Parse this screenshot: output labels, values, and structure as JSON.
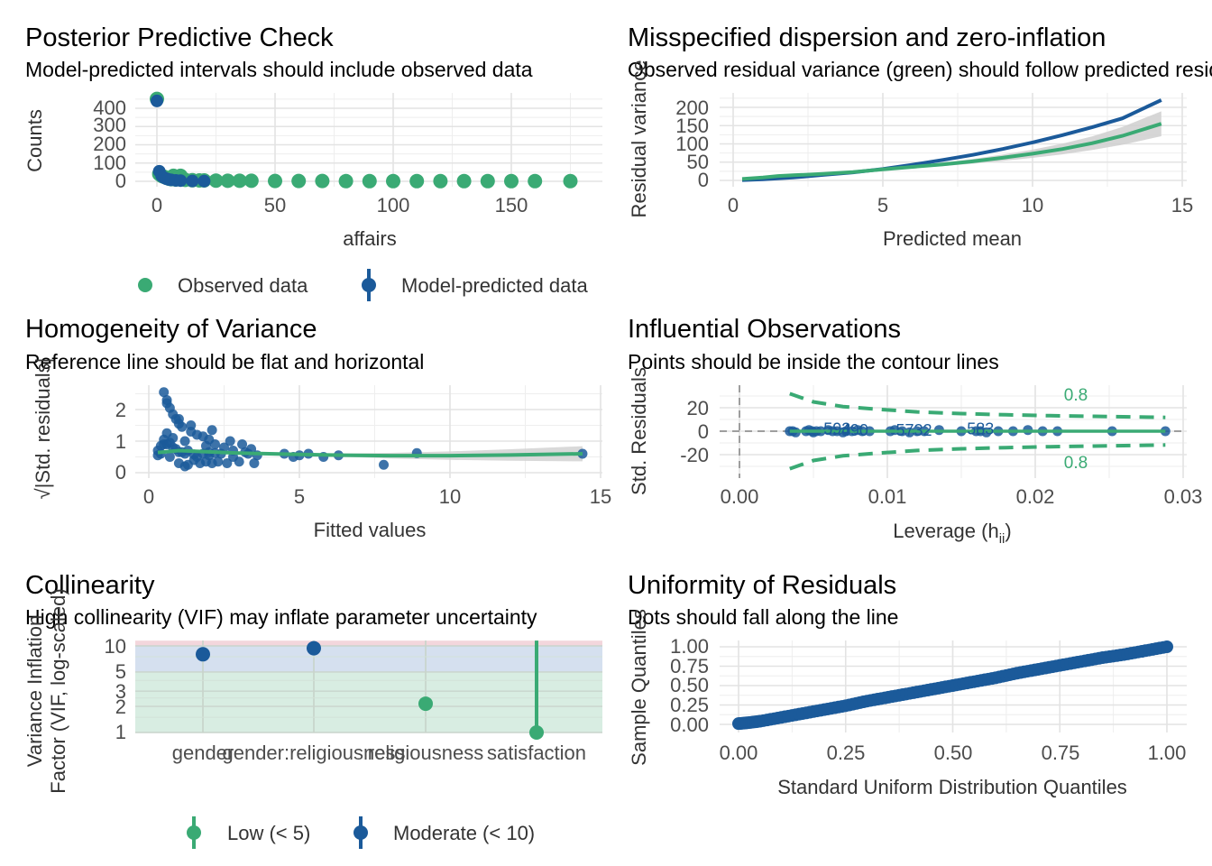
{
  "colors": {
    "green": "#3aaa74",
    "blue": "#1b5a9a",
    "grey_band": "#cfcfcf",
    "ref": "#9e9e9e"
  },
  "panels": {
    "ppc": {
      "title": "Posterior Predictive Check",
      "subtitle": "Model-predicted intervals should include observed data",
      "xlabel": "affairs",
      "ylabel": "Counts",
      "xticks": [
        "0",
        "50",
        "100",
        "150"
      ],
      "yticks": [
        "0",
        "100",
        "200",
        "300",
        "400"
      ],
      "legend": [
        "Observed data",
        "Model-predicted data"
      ]
    },
    "disp": {
      "title": "Misspecified dispersion and zero-inflation",
      "subtitle": "Observed residual variance (green) should follow predicted residual variance (blue)",
      "xlabel": "Predicted mean",
      "ylabel": "Residual variance",
      "xticks": [
        "0",
        "5",
        "10",
        "15"
      ],
      "yticks": [
        "0",
        "50",
        "100",
        "150",
        "200"
      ]
    },
    "homog": {
      "title": "Homogeneity of Variance",
      "subtitle": "Reference line should be flat and horizontal",
      "xlabel": "Fitted values",
      "ylabel": "√|Std. residuals|",
      "xticks": [
        "0",
        "5",
        "10",
        "15"
      ],
      "yticks": [
        "0",
        "1",
        "2"
      ]
    },
    "infl": {
      "title": "Influential Observations",
      "subtitle": "Points should be inside the contour lines",
      "xlabel": "Leverage (h",
      "xlabel_sub": "ii",
      "xlabel_end": ")",
      "ylabel": "Std. Residuals",
      "xticks": [
        "0.00",
        "0.01",
        "0.02",
        "0.03"
      ],
      "yticks": [
        "-20",
        "0",
        "20"
      ],
      "contour_label": "0.8",
      "point_labels": [
        "593",
        "490",
        "5732",
        "583"
      ]
    },
    "coll": {
      "title": "Collinearity",
      "subtitle": "High collinearity (VIF) may inflate parameter uncertainty",
      "ylabel_1": "Variance Inflation",
      "ylabel_2": "Factor (VIF, log-scaled)",
      "xticks": [
        "gender",
        "gender:religiousness",
        "religiousness",
        "satisfaction"
      ],
      "yticks": [
        "1",
        "2",
        "3",
        "5",
        "10"
      ],
      "legend": [
        "Low (< 5)",
        "Moderate (< 10)"
      ]
    },
    "unif": {
      "title": "Uniformity of Residuals",
      "subtitle": "Dots should fall along the line",
      "xlabel": "Standard Uniform Distribution Quantiles",
      "ylabel": "Sample Quantiles",
      "xticks": [
        "0.00",
        "0.25",
        "0.50",
        "0.75",
        "1.00"
      ],
      "yticks": [
        "0.00",
        "0.25",
        "0.50",
        "0.75",
        "1.00"
      ]
    }
  },
  "chart_data": [
    {
      "type": "scatter",
      "title": "Posterior Predictive Check",
      "xlabel": "affairs",
      "ylabel": "Counts",
      "xlim": [
        -3,
        183
      ],
      "ylim": [
        -10,
        470
      ],
      "series": [
        {
          "name": "Observed data",
          "x": [
            0,
            1,
            2,
            3,
            4,
            5,
            6,
            7,
            8,
            10,
            12,
            15,
            18,
            20,
            25,
            30,
            35,
            40,
            50,
            60,
            70,
            80,
            90,
            100,
            110,
            120,
            130,
            140,
            150,
            160,
            175
          ],
          "y": [
            451,
            40,
            30,
            25,
            20,
            15,
            12,
            30,
            10,
            30,
            8,
            6,
            5,
            5,
            4,
            3,
            3,
            3,
            2,
            2,
            2,
            1,
            1,
            1,
            1,
            1,
            1,
            1,
            1,
            1,
            1
          ]
        },
        {
          "name": "Model-predicted data",
          "x": [
            0,
            1,
            2,
            3,
            4,
            5,
            6,
            8,
            10,
            15,
            20
          ],
          "y": [
            440,
            55,
            30,
            20,
            14,
            10,
            8,
            5,
            4,
            2,
            1
          ]
        }
      ]
    },
    {
      "type": "line",
      "title": "Misspecified dispersion and zero-inflation",
      "xlabel": "Predicted mean",
      "ylabel": "Residual variance",
      "xlim": [
        -0.3,
        15
      ],
      "ylim": [
        -10,
        230
      ],
      "series": [
        {
          "name": "Observed residual variance",
          "x": [
            0.3,
            1,
            1.5,
            2,
            3,
            4,
            5,
            6,
            7,
            8,
            9,
            10,
            11,
            12,
            13,
            14.3
          ],
          "y": [
            4,
            8,
            12,
            14,
            18,
            23,
            30,
            37,
            44,
            52,
            62,
            73,
            86,
            102,
            122,
            155
          ]
        },
        {
          "name": "Predicted residual variance",
          "x": [
            0.3,
            1,
            2,
            3,
            4,
            5,
            6,
            7,
            8,
            9,
            10,
            11,
            12,
            13,
            14.3
          ],
          "y": [
            1,
            3,
            8,
            15,
            22,
            31,
            43,
            56,
            70,
            86,
            104,
            124,
            146,
            170,
            220
          ]
        }
      ]
    },
    {
      "type": "scatter",
      "title": "Homogeneity of Variance",
      "xlabel": "Fitted values",
      "ylabel": "√|Std. residuals|",
      "xlim": [
        -0.3,
        15
      ],
      "ylim": [
        -0.1,
        2.6
      ],
      "points_x": [
        0.3,
        0.3,
        0.4,
        0.5,
        0.5,
        0.6,
        0.6,
        0.7,
        0.8,
        0.9,
        1.0,
        1.0,
        1.1,
        1.2,
        1.3,
        1.4,
        1.5,
        1.6,
        1.7,
        1.8,
        1.9,
        2.0,
        2.1,
        2.2,
        2.3,
        2.5,
        2.6,
        2.8,
        3.0,
        3.2,
        3.5,
        0.5,
        0.6,
        0.8,
        1.0,
        1.2,
        1.5,
        1.8,
        2.0,
        2.4,
        2.8,
        3.3,
        3.6,
        4.5,
        4.8,
        5.0,
        5.3,
        5.8,
        6.3,
        7.8,
        8.9,
        14.4,
        0.9,
        1.1,
        1.3,
        1.6,
        2.0,
        2.2,
        1.0,
        1.2,
        1.4,
        0.6,
        0.7,
        0.8,
        1.9,
        2.1,
        2.7,
        3.1,
        3.4,
        0.4,
        0.7
      ],
      "points_y": [
        0.55,
        0.7,
        0.6,
        0.9,
        2.55,
        2.3,
        2.2,
        2.05,
        1.85,
        1.7,
        1.55,
        0.3,
        1.45,
        0.2,
        0.25,
        1.3,
        0.4,
        1.2,
        0.3,
        1.15,
        0.35,
        1.05,
        0.3,
        0.9,
        0.35,
        0.8,
        0.3,
        0.7,
        0.35,
        0.65,
        0.3,
        1.05,
        0.9,
        0.8,
        0.65,
        0.6,
        0.58,
        0.6,
        0.65,
        0.6,
        0.5,
        0.6,
        0.55,
        0.6,
        0.5,
        0.55,
        0.6,
        0.5,
        0.55,
        0.25,
        0.62,
        0.6,
        0.75,
        0.65,
        0.7,
        0.5,
        0.55,
        0.62,
        1.7,
        1.0,
        1.5,
        1.25,
        0.95,
        1.1,
        0.85,
        1.35,
        1.0,
        0.9,
        0.75,
        0.85,
        0.5
      ],
      "smooth_x": [
        0.3,
        1,
        2,
        3,
        4,
        5,
        6,
        8,
        10,
        12,
        14.4
      ],
      "smooth_y": [
        0.64,
        0.7,
        0.66,
        0.62,
        0.6,
        0.58,
        0.56,
        0.54,
        0.54,
        0.56,
        0.6
      ]
    },
    {
      "type": "scatter",
      "title": "Influential Observations",
      "xlabel": "Leverage (hii)",
      "ylabel": "Std. Residuals",
      "xlim": [
        -0.0013,
        0.0305
      ],
      "ylim": [
        -36,
        36
      ],
      "points_x": [
        0.0034,
        0.0036,
        0.0038,
        0.0045,
        0.0047,
        0.0049,
        0.005,
        0.0052,
        0.0055,
        0.006,
        0.0063,
        0.0066,
        0.007,
        0.0072,
        0.0076,
        0.008,
        0.0083,
        0.0088,
        0.0102,
        0.0105,
        0.011,
        0.0115,
        0.012,
        0.0125,
        0.0135,
        0.015,
        0.016,
        0.0163,
        0.0167,
        0.0175,
        0.0185,
        0.0195,
        0.0205,
        0.0215,
        0.0252,
        0.0288
      ],
      "points_y": [
        0,
        0,
        -1,
        0,
        1,
        0,
        -1,
        0,
        0,
        1,
        0,
        0,
        -1,
        0,
        0,
        1,
        0,
        0,
        0,
        1,
        0,
        -1,
        0,
        0,
        1,
        0,
        0,
        0,
        -1,
        0,
        0,
        1,
        0,
        0,
        0,
        0
      ],
      "labels": [
        {
          "text": "593",
          "x": 0.0066,
          "y": 1
        },
        {
          "text": "490",
          "x": 0.0078,
          "y": 0
        },
        {
          "text": "5732",
          "x": 0.0118,
          "y": 0
        },
        {
          "text": "583",
          "x": 0.0163,
          "y": 1
        }
      ],
      "contour": {
        "level": 0.8,
        "x": [
          0.0034,
          0.005,
          0.007,
          0.009,
          0.012,
          0.015,
          0.018,
          0.021,
          0.024,
          0.0288
        ],
        "upper": [
          32,
          25,
          21,
          19,
          16.5,
          15,
          14,
          13.2,
          12.7,
          11.8
        ]
      }
    },
    {
      "type": "scatter",
      "title": "Collinearity",
      "ylabel": "Variance Inflation Factor (VIF, log-scaled)",
      "categories": [
        "gender",
        "gender:religiousness",
        "religiousness",
        "satisfaction"
      ],
      "values": [
        8.0,
        9.4,
        2.15,
        1.0
      ],
      "upper": [
        null,
        null,
        null,
        11.5
      ],
      "group": [
        "Moderate (< 10)",
        "Moderate (< 10)",
        "Low (< 5)",
        "Low (< 5)"
      ],
      "ylim": [
        1,
        11.5
      ],
      "log_y": true
    },
    {
      "type": "scatter",
      "title": "Uniformity of Residuals",
      "xlabel": "Standard Uniform Distribution Quantiles",
      "ylabel": "Sample Quantiles",
      "xlim": [
        -0.04,
        1.05
      ],
      "ylim": [
        -0.06,
        1.06
      ],
      "x": [
        0.0,
        0.02,
        0.05,
        0.1,
        0.15,
        0.2,
        0.25,
        0.3,
        0.35,
        0.4,
        0.45,
        0.5,
        0.55,
        0.6,
        0.65,
        0.7,
        0.75,
        0.8,
        0.85,
        0.9,
        0.95,
        1.0
      ],
      "y": [
        0.01,
        0.02,
        0.04,
        0.09,
        0.14,
        0.19,
        0.24,
        0.3,
        0.35,
        0.4,
        0.45,
        0.5,
        0.55,
        0.6,
        0.66,
        0.71,
        0.76,
        0.81,
        0.86,
        0.9,
        0.95,
        1.0
      ]
    }
  ]
}
